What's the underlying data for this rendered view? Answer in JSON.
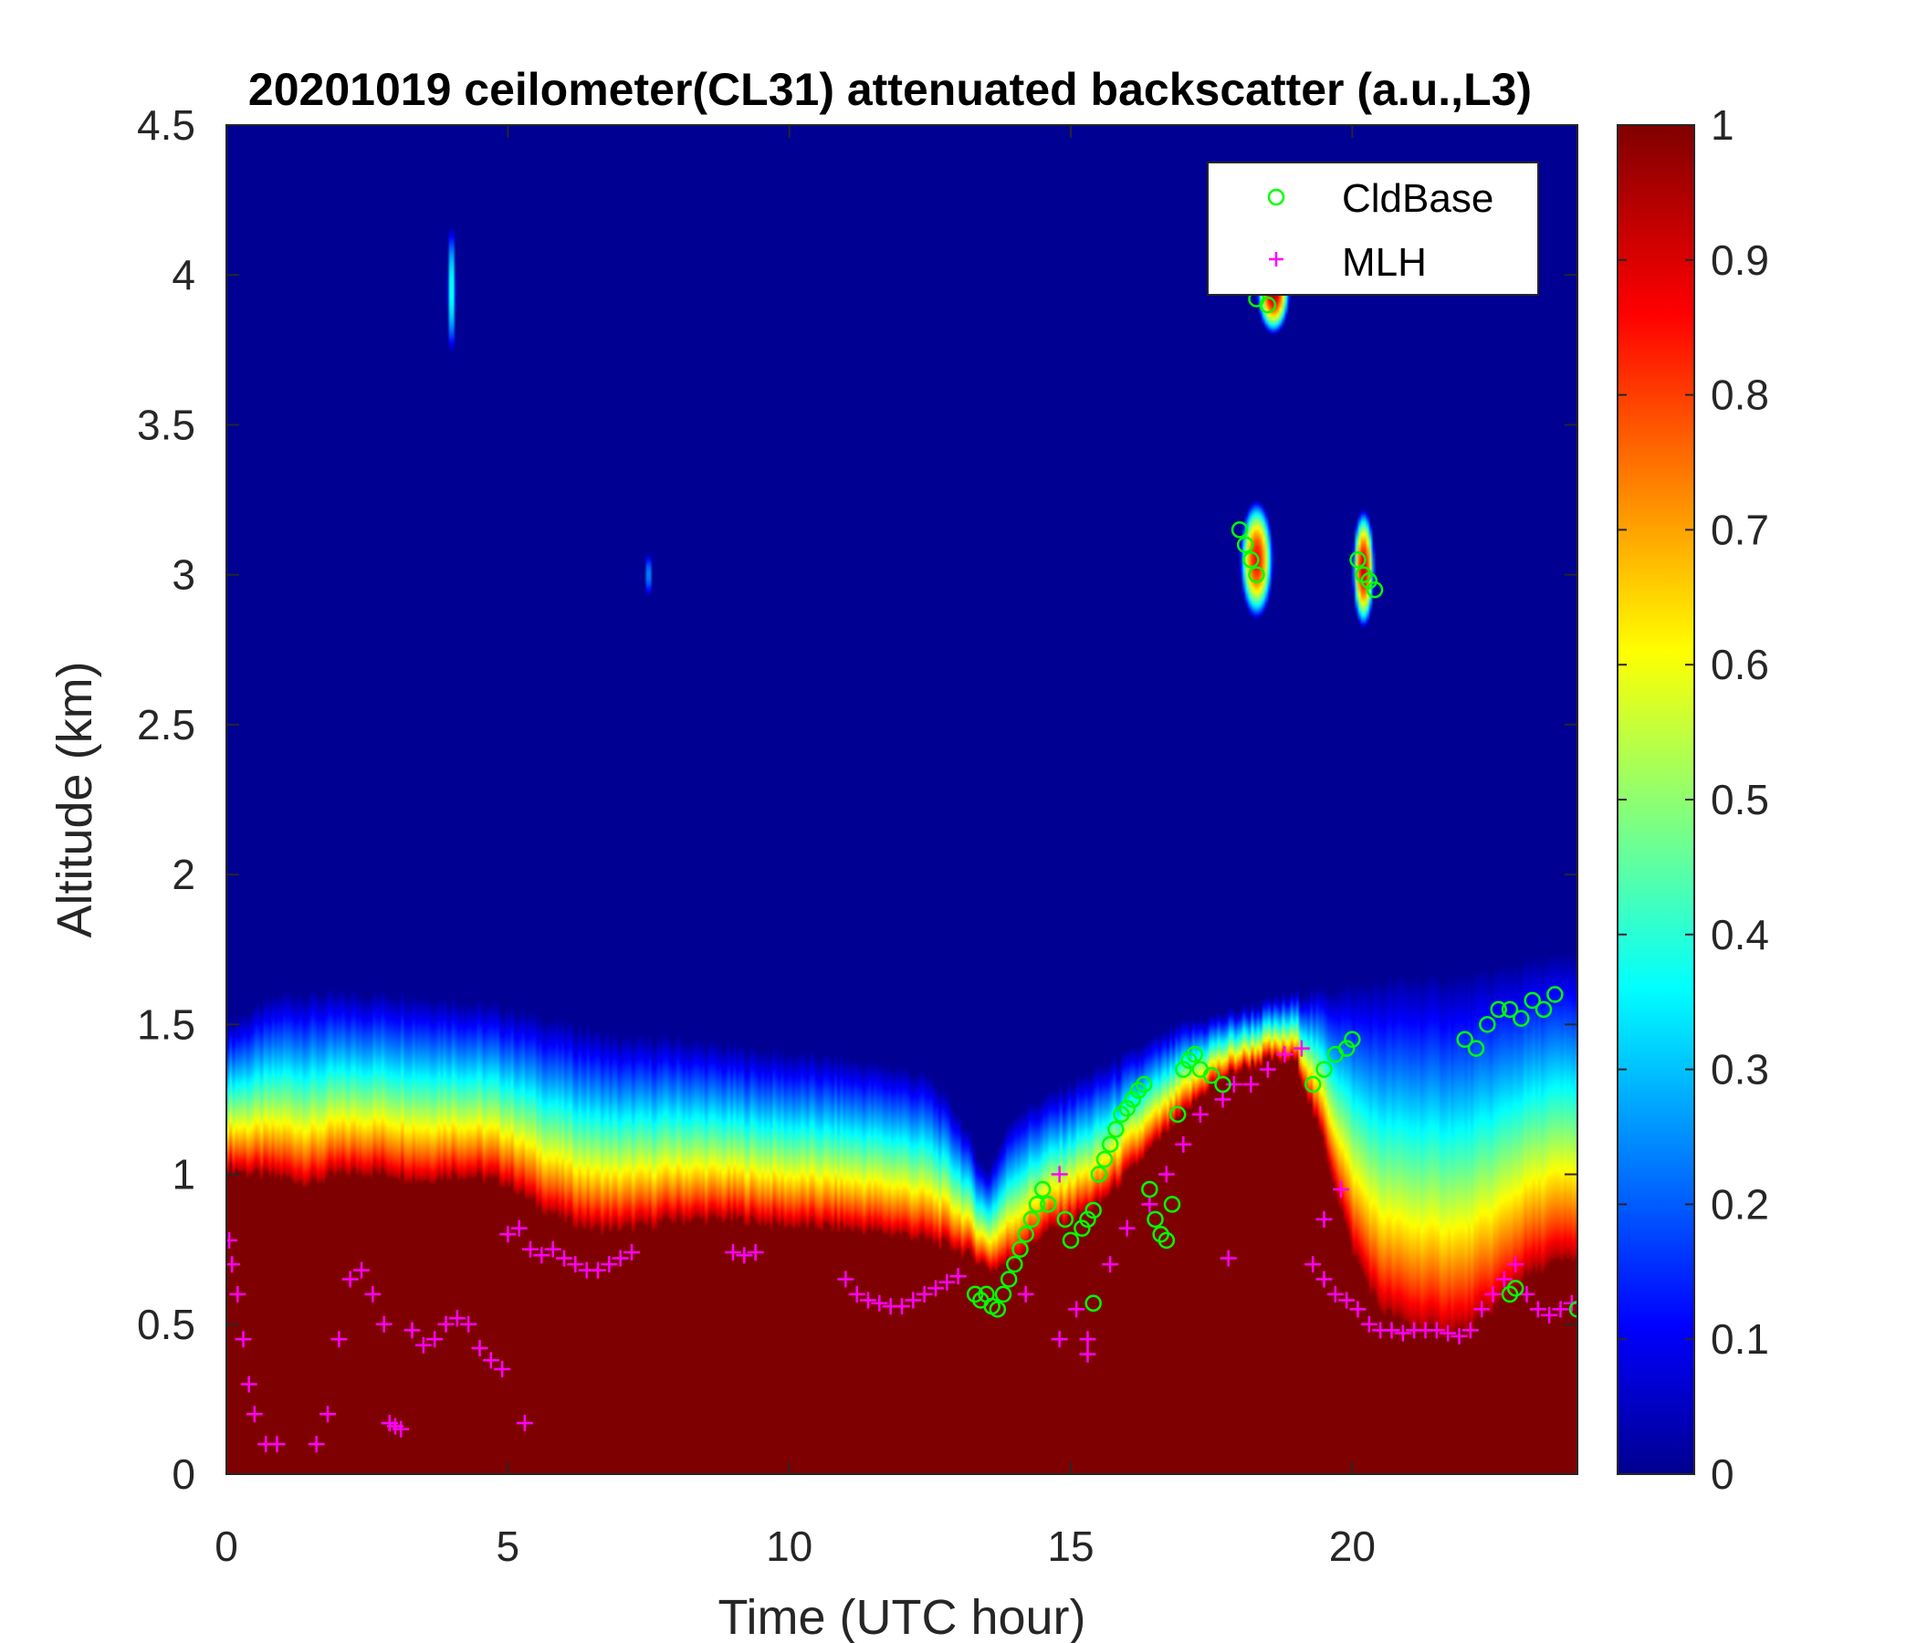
{
  "chart_data": {
    "type": "heatmap",
    "title": "20201019 ceilometer(CL31) attenuated backscatter (a.u.,L3)",
    "xlabel": "Time (UTC hour)",
    "ylabel": "Altitude (km)",
    "xlim": [
      0,
      24
    ],
    "ylim": [
      0,
      4.5
    ],
    "x_ticks": [
      0,
      5,
      10,
      15,
      20
    ],
    "y_ticks": [
      0,
      0.5,
      1,
      1.5,
      2,
      2.5,
      3,
      3.5,
      4,
      4.5
    ],
    "x_tick_labels": [
      "0",
      "5",
      "10",
      "15",
      "20"
    ],
    "y_tick_labels": [
      "0",
      "0.5",
      "1",
      "1.5",
      "2",
      "2.5",
      "3",
      "3.5",
      "4",
      "4.5"
    ],
    "colorbar": {
      "range": [
        0,
        1
      ],
      "colormap": "jet",
      "ticks": [
        0,
        0.1,
        0.2,
        0.3,
        0.4,
        0.5,
        0.6,
        0.7,
        0.8,
        0.9,
        1
      ],
      "tick_labels": [
        "0",
        "0.1",
        "0.2",
        "0.3",
        "0.4",
        "0.5",
        "0.6",
        "0.7",
        "0.8",
        "0.9",
        "1"
      ]
    },
    "legend": {
      "position": "top-right",
      "entries": [
        {
          "label": "CldBase",
          "marker": "circle",
          "color": "#00ff00"
        },
        {
          "label": "MLH",
          "marker": "plus",
          "color": "#ff00ff"
        }
      ]
    },
    "boundary_layer_top_km": {
      "x": [
        0,
        0.5,
        1,
        1.5,
        2,
        2.5,
        3,
        3.5,
        4,
        4.5,
        5,
        5.5,
        6,
        6.5,
        7,
        7.5,
        8,
        9,
        10,
        11,
        12,
        12.5,
        13,
        13.3,
        13.6,
        14,
        14.5,
        15,
        15.5,
        16,
        16.5,
        17,
        17.5,
        18,
        18.5,
        19,
        19.5,
        20,
        20.5,
        21,
        21.5,
        22,
        22.5,
        23,
        23.5,
        24
      ],
      "y": [
        1.02,
        1.0,
        0.99,
        0.97,
        1.0,
        1.01,
        1.0,
        0.98,
        1.0,
        0.99,
        0.97,
        0.9,
        0.85,
        0.82,
        0.82,
        0.83,
        0.85,
        0.85,
        0.83,
        0.82,
        0.8,
        0.78,
        0.75,
        0.72,
        0.68,
        0.72,
        0.8,
        0.85,
        0.9,
        1.0,
        1.1,
        1.2,
        1.3,
        1.35,
        1.38,
        1.38,
        1.1,
        0.75,
        0.55,
        0.5,
        0.48,
        0.48,
        0.55,
        0.65,
        0.7,
        0.72
      ]
    },
    "aerosol_layer_top_km": {
      "x": [
        0,
        0.5,
        1,
        2,
        3,
        4,
        5,
        6,
        7,
        8,
        9,
        10,
        11,
        12,
        12.5,
        13,
        13.5,
        14,
        14.5,
        15,
        15.5,
        16,
        17,
        18,
        19,
        20,
        21,
        22,
        23,
        23.5,
        24
      ],
      "y": [
        1.5,
        1.55,
        1.6,
        1.6,
        1.6,
        1.58,
        1.55,
        1.5,
        1.45,
        1.45,
        1.42,
        1.4,
        1.38,
        1.35,
        1.32,
        1.2,
        1.0,
        1.2,
        1.25,
        1.3,
        1.35,
        1.4,
        1.5,
        1.55,
        1.6,
        1.62,
        1.65,
        1.65,
        1.7,
        1.72,
        1.72
      ]
    },
    "elevated_layers": [
      {
        "x_center": 4.0,
        "z_center_km": 3.95,
        "half_width_h": 0.08,
        "half_depth_km": 0.22,
        "intensity": 0.4
      },
      {
        "x_center": 7.5,
        "z_center_km": 3.0,
        "half_width_h": 0.05,
        "half_depth_km": 0.08,
        "intensity": 0.3
      },
      {
        "x_center": 18.3,
        "z_center_km": 3.05,
        "half_width_h": 0.3,
        "half_depth_km": 0.2,
        "intensity": 0.85
      },
      {
        "x_center": 20.2,
        "z_center_km": 3.02,
        "half_width_h": 0.2,
        "half_depth_km": 0.2,
        "intensity": 0.9
      },
      {
        "x_center": 18.6,
        "z_center_km": 3.95,
        "half_width_h": 0.3,
        "half_depth_km": 0.15,
        "intensity": 0.95
      }
    ],
    "series": [
      {
        "name": "CldBase",
        "x": [
          13.3,
          13.4,
          13.5,
          13.6,
          13.7,
          13.8,
          13.9,
          14.0,
          14.1,
          14.2,
          14.3,
          14.4,
          14.5,
          14.6,
          14.9,
          15.0,
          15.2,
          15.3,
          15.4,
          15.5,
          15.6,
          15.7,
          15.8,
          15.9,
          16.0,
          16.1,
          16.2,
          16.3,
          16.4,
          16.5,
          16.6,
          16.7,
          16.8,
          16.9,
          17.0,
          17.1,
          17.2,
          17.3,
          17.5,
          17.7,
          18.0,
          18.1,
          18.2,
          18.3,
          19.3,
          19.5,
          19.7,
          19.9,
          20.0,
          20.1,
          20.2,
          20.3,
          20.4,
          22.0,
          22.2,
          22.4,
          22.6,
          22.8,
          23.0,
          23.2,
          23.4,
          23.6,
          22.8,
          22.9,
          24.0,
          15.4,
          18.3,
          18.5
        ],
        "y": [
          0.6,
          0.58,
          0.6,
          0.56,
          0.55,
          0.6,
          0.65,
          0.7,
          0.75,
          0.8,
          0.85,
          0.9,
          0.95,
          0.9,
          0.85,
          0.78,
          0.82,
          0.85,
          0.88,
          1.0,
          1.05,
          1.1,
          1.15,
          1.2,
          1.22,
          1.25,
          1.28,
          1.3,
          0.95,
          0.85,
          0.8,
          0.78,
          0.9,
          1.2,
          1.35,
          1.38,
          1.4,
          1.35,
          1.33,
          1.3,
          3.15,
          3.1,
          3.05,
          3.0,
          1.3,
          1.35,
          1.4,
          1.42,
          1.45,
          3.05,
          3.0,
          2.98,
          2.95,
          1.45,
          1.42,
          1.5,
          1.55,
          1.55,
          1.52,
          1.58,
          1.55,
          1.6,
          0.6,
          0.62,
          0.55,
          0.57,
          3.92,
          3.9
        ]
      },
      {
        "name": "MLH",
        "x": [
          0.05,
          0.1,
          0.2,
          0.3,
          0.4,
          0.5,
          0.7,
          0.9,
          1.6,
          1.8,
          2.0,
          2.2,
          2.4,
          2.6,
          2.8,
          2.9,
          3.1,
          3.3,
          3.5,
          3.7,
          3.9,
          4.1,
          4.3,
          4.5,
          4.7,
          4.9,
          5.0,
          5.2,
          5.4,
          5.6,
          5.8,
          6.0,
          6.2,
          6.4,
          6.6,
          6.8,
          7.0,
          7.2,
          9.0,
          9.2,
          9.4,
          11.0,
          11.2,
          11.4,
          11.6,
          11.8,
          12.0,
          12.2,
          12.4,
          12.6,
          12.8,
          13.0,
          14.2,
          14.8,
          15.1,
          15.3,
          15.7,
          16.0,
          16.4,
          16.7,
          17.0,
          17.3,
          17.7,
          17.9,
          18.2,
          18.5,
          18.8,
          19.1,
          19.3,
          19.5,
          19.7,
          19.9,
          20.1,
          20.3,
          20.5,
          20.7,
          20.9,
          21.1,
          21.3,
          21.5,
          21.7,
          21.9,
          22.1,
          22.3,
          22.5,
          22.7,
          22.9,
          23.1,
          23.3,
          23.5,
          23.7,
          23.9,
          5.3,
          2.9,
          3.0,
          19.5,
          19.8,
          15.3,
          14.8,
          17.8
        ],
        "y": [
          0.78,
          0.7,
          0.6,
          0.45,
          0.3,
          0.2,
          0.1,
          0.1,
          0.1,
          0.2,
          0.45,
          0.65,
          0.68,
          0.6,
          0.5,
          0.17,
          0.15,
          0.48,
          0.43,
          0.45,
          0.5,
          0.52,
          0.5,
          0.42,
          0.38,
          0.35,
          0.8,
          0.82,
          0.75,
          0.73,
          0.75,
          0.72,
          0.7,
          0.68,
          0.68,
          0.7,
          0.72,
          0.74,
          0.74,
          0.73,
          0.74,
          0.65,
          0.6,
          0.58,
          0.57,
          0.56,
          0.56,
          0.58,
          0.6,
          0.62,
          0.64,
          0.66,
          0.6,
          0.45,
          0.55,
          0.45,
          0.7,
          0.82,
          0.9,
          1.0,
          1.1,
          1.2,
          1.25,
          1.3,
          1.3,
          1.35,
          1.4,
          1.42,
          0.7,
          0.65,
          0.6,
          0.58,
          0.55,
          0.5,
          0.48,
          0.48,
          0.47,
          0.48,
          0.48,
          0.48,
          0.47,
          0.46,
          0.48,
          0.55,
          0.6,
          0.65,
          0.7,
          0.6,
          0.55,
          0.53,
          0.55,
          0.57,
          0.17,
          0.17,
          0.16,
          0.85,
          0.95,
          0.4,
          1.0,
          0.72
        ]
      }
    ]
  }
}
